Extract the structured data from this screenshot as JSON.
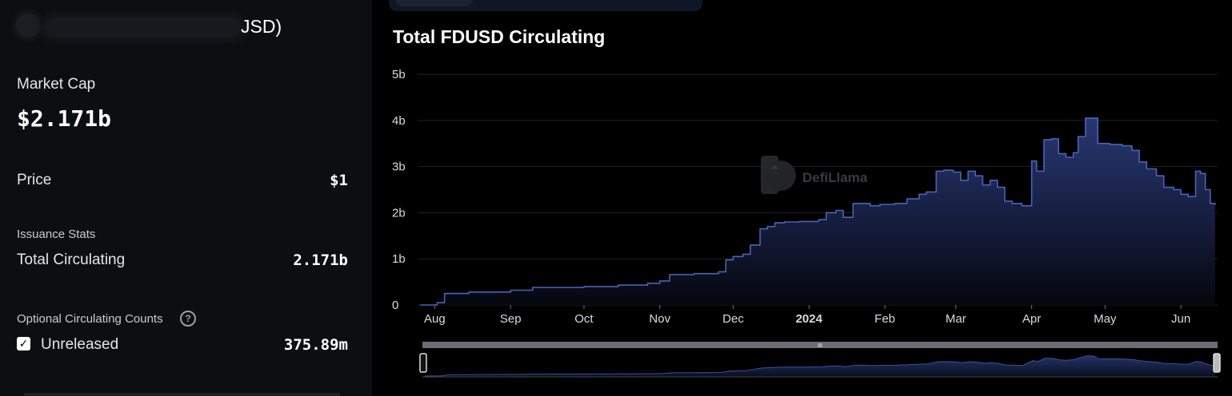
{
  "panel": {
    "coin_name_visible": "JSD)",
    "market_cap_label": "Market Cap",
    "market_cap_value": "$2.171b",
    "price_label": "Price",
    "price_value": "$1",
    "issuance_label": "Issuance Stats",
    "total_circulating_label": "Total Circulating",
    "total_circulating_value": "2.171b",
    "optional_label": "Optional Circulating Counts",
    "help_icon": "?",
    "unreleased_checked": true,
    "unreleased_check_glyph": "✓",
    "unreleased_label": "Unreleased",
    "unreleased_value": "375.89m"
  },
  "watermark": "DefiLlama",
  "slider_handle_glyph": "III",
  "colors": {
    "accent_line": "#4a63b8",
    "area_top": "#2a3a78",
    "area_bottom": "#05070f",
    "panel_bg": "#0b0f12",
    "page_bg": "#000000"
  },
  "chart_data": {
    "type": "area",
    "title": "Total FDUSD Circulating",
    "x_tick_labels": [
      "Aug",
      "Sep",
      "Oct",
      "Nov",
      "Dec",
      "2024",
      "Feb",
      "Mar",
      "Apr",
      "May",
      "Jun"
    ],
    "x_tick_dates": [
      "2023-08-01",
      "2023-09-01",
      "2023-10-01",
      "2023-11-01",
      "2023-12-01",
      "2024-01-01",
      "2024-02-01",
      "2024-03-01",
      "2024-04-01",
      "2024-05-01",
      "2024-06-01"
    ],
    "y_tick_labels": [
      "0",
      "1b",
      "2b",
      "3b",
      "4b",
      "5b"
    ],
    "ylim": [
      0,
      5
    ],
    "y_unit": "b",
    "grid": true,
    "series": [
      {
        "x": [
          "2023-07-26",
          "2023-08-02",
          "2023-08-05",
          "2023-08-15",
          "2023-09-01",
          "2023-09-10",
          "2023-10-01",
          "2023-10-15",
          "2023-10-27",
          "2023-11-01",
          "2023-11-05",
          "2023-11-15",
          "2023-11-25",
          "2023-11-28",
          "2023-12-01",
          "2023-12-05",
          "2023-12-08",
          "2023-12-12",
          "2023-12-15",
          "2023-12-18",
          "2023-12-22",
          "2023-12-28",
          "2024-01-05",
          "2024-01-08",
          "2024-01-12",
          "2024-01-15",
          "2024-01-19",
          "2024-01-22",
          "2024-01-26",
          "2024-01-30",
          "2024-02-05",
          "2024-02-10",
          "2024-02-15",
          "2024-02-18",
          "2024-02-22",
          "2024-02-25",
          "2024-02-29",
          "2024-03-03",
          "2024-03-06",
          "2024-03-09",
          "2024-03-12",
          "2024-03-15",
          "2024-03-18",
          "2024-03-21",
          "2024-03-24",
          "2024-03-28",
          "2024-04-01",
          "2024-04-03",
          "2024-04-06",
          "2024-04-09",
          "2024-04-12",
          "2024-04-15",
          "2024-04-18",
          "2024-04-20",
          "2024-04-23",
          "2024-04-26",
          "2024-04-28",
          "2024-05-03",
          "2024-05-08",
          "2024-05-12",
          "2024-05-15",
          "2024-05-18",
          "2024-05-22",
          "2024-05-25",
          "2024-05-29",
          "2024-06-01",
          "2024-06-04",
          "2024-06-07",
          "2024-06-09",
          "2024-06-11",
          "2024-06-13",
          "2024-06-15"
        ],
        "values": [
          0.0,
          0.05,
          0.25,
          0.28,
          0.32,
          0.38,
          0.4,
          0.43,
          0.47,
          0.52,
          0.66,
          0.68,
          0.72,
          0.98,
          1.05,
          1.1,
          1.3,
          1.65,
          1.7,
          1.78,
          1.8,
          1.81,
          1.85,
          2.0,
          2.05,
          1.9,
          2.2,
          2.2,
          2.15,
          2.18,
          2.2,
          2.3,
          2.4,
          2.45,
          2.9,
          2.92,
          2.88,
          2.7,
          2.9,
          2.8,
          2.6,
          2.7,
          2.55,
          2.25,
          2.2,
          2.15,
          3.12,
          2.9,
          3.58,
          3.6,
          3.28,
          3.2,
          3.3,
          3.65,
          4.05,
          4.05,
          3.5,
          3.48,
          3.45,
          3.35,
          3.1,
          2.95,
          2.8,
          2.55,
          2.5,
          2.4,
          2.35,
          2.9,
          2.85,
          2.5,
          2.2,
          2.17
        ]
      }
    ]
  }
}
